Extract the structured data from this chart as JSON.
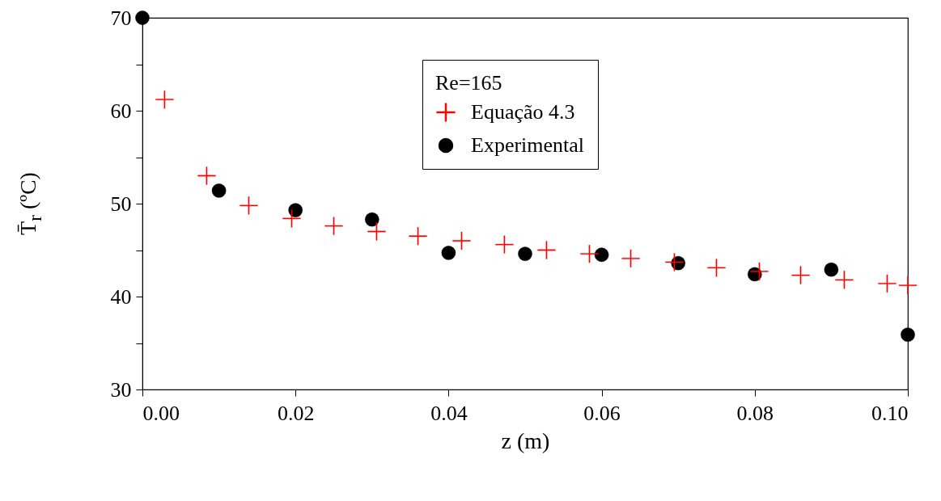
{
  "chart_data": {
    "type": "scatter",
    "xlabel": "z (m)",
    "ylabel": "T̄$_{r}$ (ºC)",
    "legend_title": "Re=165",
    "legend": "top right",
    "xlim": [
      0,
      0.1
    ],
    "xticks": [
      {
        "value": 0,
        "label": "0.00"
      },
      {
        "value": 0.02,
        "label": "0.02"
      },
      {
        "value": 0.04,
        "label": "0.04"
      },
      {
        "value": 0.06,
        "label": "0.06"
      },
      {
        "value": 0.08,
        "label": "0.08"
      },
      {
        "value": 0.1,
        "label": "0.10"
      }
    ],
    "ylim": [
      30,
      70
    ],
    "yticks": [
      30,
      {
        "value": 35,
        "label": null
      },
      40,
      {
        "value": 45,
        "label": null
      },
      50,
      {
        "value": 55,
        "label": null
      },
      60,
      {
        "value": 65,
        "label": null
      },
      70
    ],
    "grid": false,
    "series": [
      {
        "name": "Equação 4.3",
        "color": "#ff0000",
        "marker": "cross",
        "x": [
          0.0029,
          0.0084,
          0.0139,
          0.0195,
          0.025,
          0.0306,
          0.036,
          0.0417,
          0.0473,
          0.0528,
          0.0584,
          0.0638,
          0.0695,
          0.075,
          0.0806,
          0.086,
          0.0917,
          0.0973,
          0.1
        ],
        "values": [
          61.2,
          53.0,
          49.8,
          48.4,
          47.6,
          47.0,
          46.5,
          46.0,
          45.6,
          45.0,
          44.6,
          44.1,
          43.7,
          43.1,
          42.7,
          42.3,
          41.8,
          41.4,
          41.2
        ]
      },
      {
        "name": "Experimental",
        "color": "#000000",
        "marker": "circle",
        "x": [
          0,
          0.01,
          0.02,
          0.03,
          0.04,
          0.05,
          0.06,
          0.07,
          0.08,
          0.09,
          0.1
        ],
        "values": [
          70,
          51.4,
          49.3,
          48.3,
          44.7,
          44.6,
          44.5,
          43.6,
          42.4,
          42.9,
          35.9
        ]
      }
    ]
  }
}
